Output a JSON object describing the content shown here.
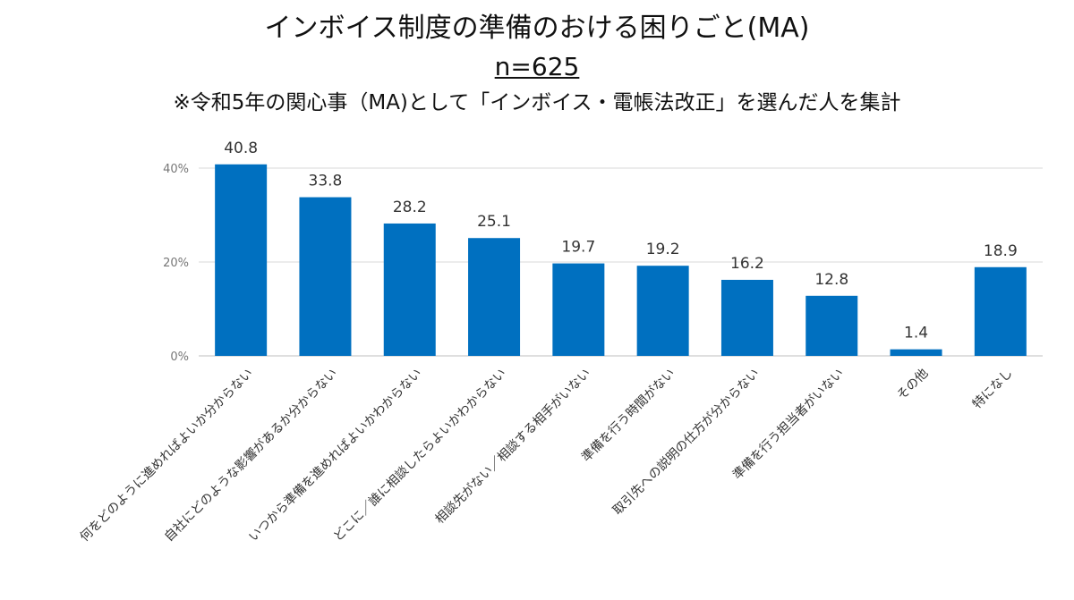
{
  "title": "インボイス制度の準備のおける困りごと(MA)",
  "sample": "n=625",
  "note": "※令和5年の関心事（MA)として「インボイス・電帳法改正」を選んだ人を集計",
  "colors": {
    "bar": "#0070C0",
    "grid": "#d9d9d9",
    "axis": "#bfbfbf"
  },
  "chart_data": {
    "type": "bar",
    "title": "インボイス制度の準備のおける困りごと(MA)",
    "xlabel": "",
    "ylabel": "",
    "ylim": [
      0,
      40
    ],
    "yticks": [
      "0%",
      "20%",
      "40%"
    ],
    "ytick_values": [
      0,
      20,
      40
    ],
    "grid": true,
    "legend": "none",
    "categories": [
      "何をどのように進めればよいか分からない",
      "自社にどのような影響があるか分からない",
      "いつから準備を進めればよいかわからない",
      "どこに／誰に相談したらよいかわからない",
      "相談先がない／相談する相手がいない",
      "準備を行う時間がない",
      "取引先への説明の仕方が分からない",
      "準備を行う担当者がいない",
      "その他",
      "特になし"
    ],
    "values": [
      40.8,
      33.8,
      28.2,
      25.1,
      19.7,
      19.2,
      16.2,
      12.8,
      1.4,
      18.9
    ],
    "data_labels": [
      "40.8",
      "33.8",
      "28.2",
      "25.1",
      "19.7",
      "19.2",
      "16.2",
      "12.8",
      "1.4",
      "18.9"
    ]
  }
}
